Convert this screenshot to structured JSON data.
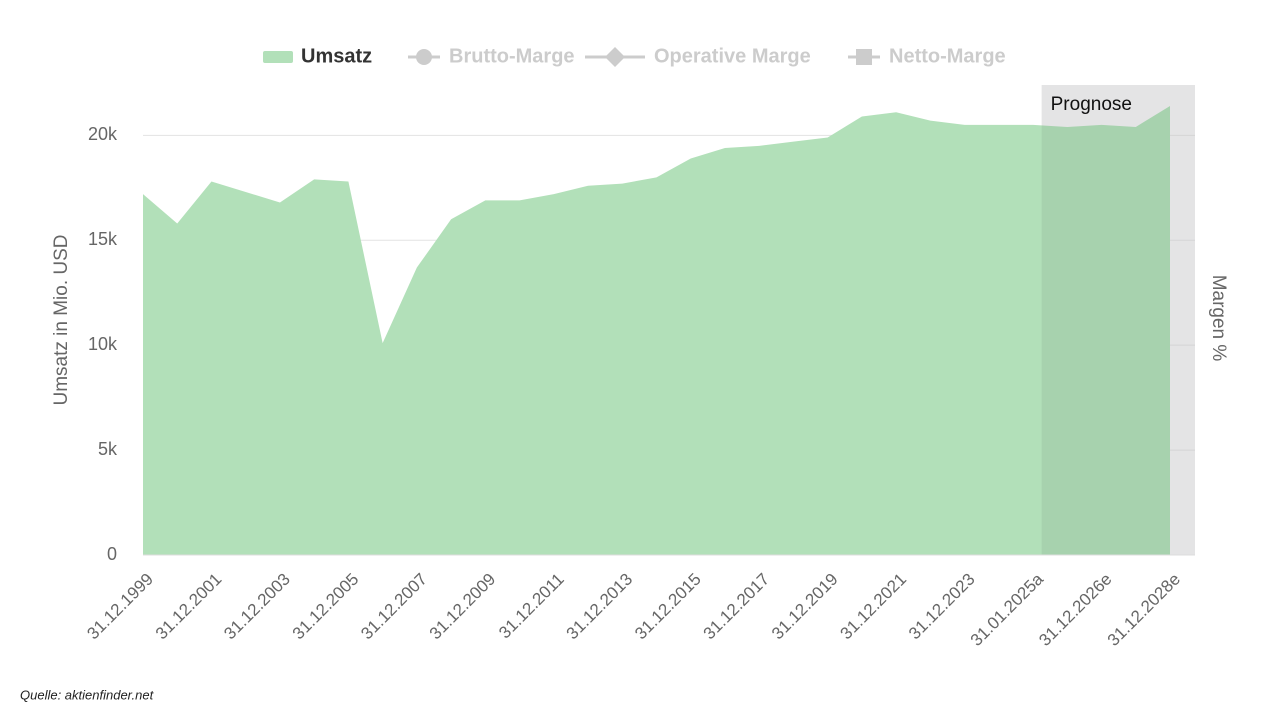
{
  "chart_data": {
    "type": "area",
    "categories": [
      "31.12.1999",
      null,
      "31.12.2001",
      null,
      "31.12.2003",
      null,
      "31.12.2005",
      null,
      "31.12.2007",
      null,
      "31.12.2009",
      null,
      "31.12.2011",
      null,
      "31.12.2013",
      null,
      "31.12.2015",
      null,
      "31.12.2017",
      null,
      "31.12.2019",
      null,
      "31.12.2021",
      null,
      "31.12.2023",
      null,
      "31.01.2025a",
      null,
      "31.12.2026e",
      null,
      "31.12.2028e"
    ],
    "series": [
      {
        "name": "Umsatz",
        "color": "#b2e0b9",
        "values": [
          17200,
          15800,
          17800,
          17300,
          16800,
          17900,
          17800,
          10100,
          13700,
          16000,
          16900,
          16900,
          17200,
          17600,
          17700,
          18000,
          18900,
          19400,
          19500,
          19700,
          19900,
          20900,
          21100,
          20700,
          20500,
          20500,
          20500,
          20400,
          20500,
          20400,
          21400
        ]
      },
      {
        "name": "Brutto-Marge",
        "color": "#cccccc",
        "hidden": true,
        "marker": "circle"
      },
      {
        "name": "Operative Marge",
        "color": "#cccccc",
        "hidden": true,
        "marker": "diamond"
      },
      {
        "name": "Netto-Marge",
        "color": "#cccccc",
        "hidden": true,
        "marker": "square"
      }
    ],
    "ylabel": "Umsatz in Mio. USD",
    "y2label": "Margen %",
    "ylim": [
      0,
      22400
    ],
    "yticks": [
      0,
      {
        "value": 5000,
        "label": "5k"
      },
      {
        "value": 10000,
        "label": "10k"
      },
      {
        "value": 15000,
        "label": "15k"
      },
      {
        "value": 20000,
        "label": "20k"
      }
    ],
    "grid": true,
    "annotation": "Prognose",
    "source": "Quelle: aktienfinder.net"
  }
}
